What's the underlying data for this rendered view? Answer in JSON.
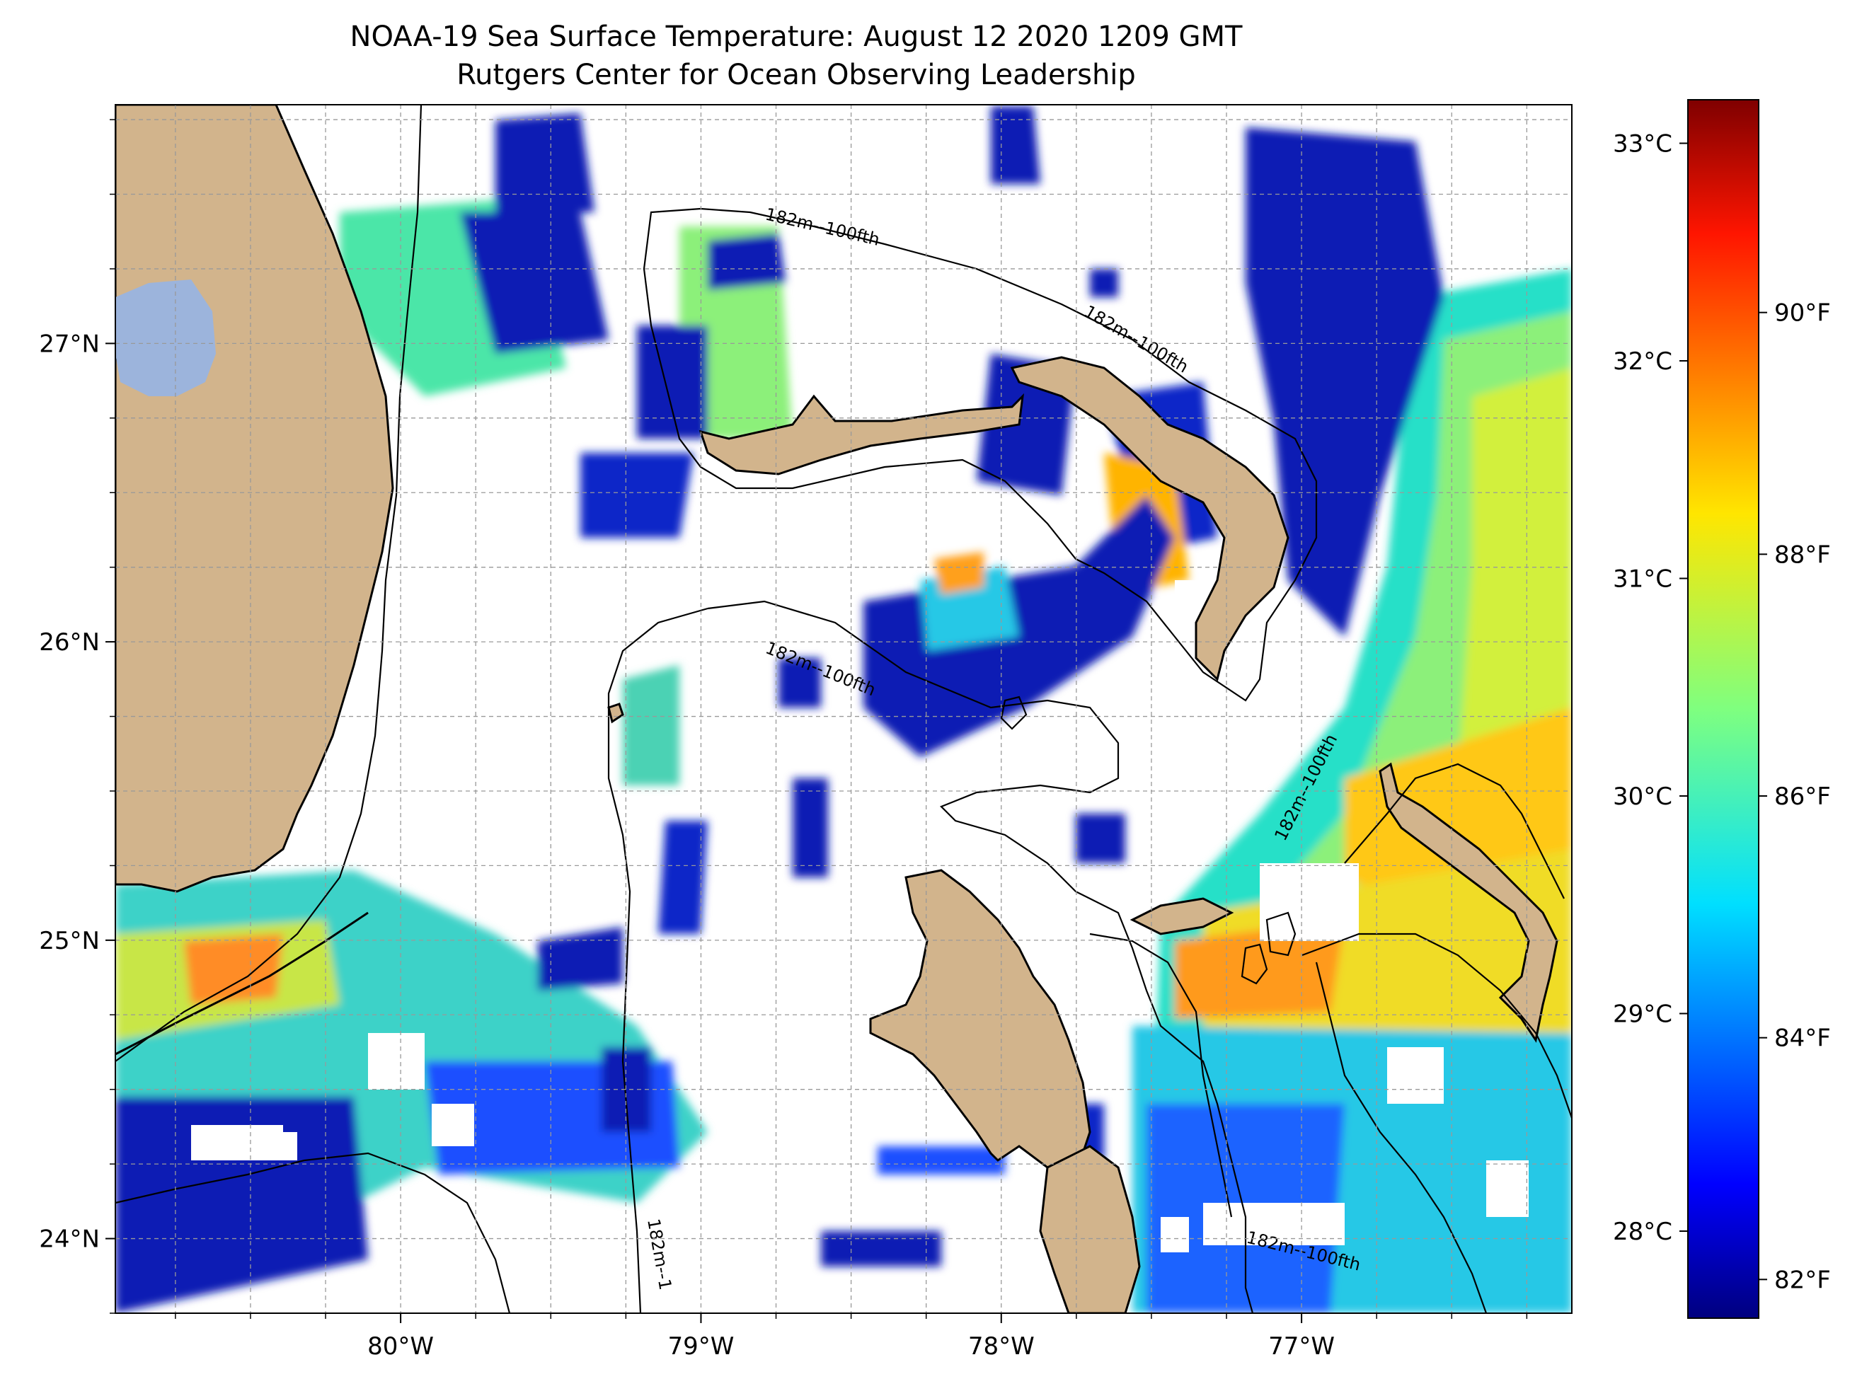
{
  "title": {
    "line1": "NOAA-19 Sea Surface Temperature: August 12 2020 1209 GMT",
    "line2": "Rutgers Center for Ocean Observing Leadership"
  },
  "map": {
    "lon_range": [
      -80.95,
      -76.1
    ],
    "lat_range": [
      23.75,
      27.8
    ],
    "lon_ticks": [
      {
        "value": -80,
        "label": "80°W"
      },
      {
        "value": -79,
        "label": "79°W"
      },
      {
        "value": -78,
        "label": "78°W"
      },
      {
        "value": -77,
        "label": "77°W"
      }
    ],
    "lat_ticks": [
      {
        "value": 27,
        "label": "27°N"
      },
      {
        "value": 26,
        "label": "26°N"
      },
      {
        "value": 25,
        "label": "25°N"
      },
      {
        "value": 24,
        "label": "24°N"
      }
    ],
    "gridlines": true,
    "land_color": "#d2b48c",
    "lake_color": "#9cb4dc",
    "contour_label": "182m--100fth",
    "contour_label_partial": "182m--1"
  },
  "colorbar": {
    "celsius_ticks": [
      {
        "value": 33,
        "label": "33°C"
      },
      {
        "value": 32,
        "label": "32°C"
      },
      {
        "value": 31,
        "label": "31°C"
      },
      {
        "value": 30,
        "label": "30°C"
      },
      {
        "value": 29,
        "label": "29°C"
      },
      {
        "value": 28,
        "label": "28°C"
      }
    ],
    "fahrenheit_ticks": [
      {
        "value": 90,
        "label": "90°F"
      },
      {
        "value": 88,
        "label": "88°F"
      },
      {
        "value": 86,
        "label": "86°F"
      },
      {
        "value": 84,
        "label": "84°F"
      },
      {
        "value": 82,
        "label": "82°F"
      }
    ],
    "range_celsius": [
      27.6,
      33.2
    ],
    "colormap": "jet"
  }
}
